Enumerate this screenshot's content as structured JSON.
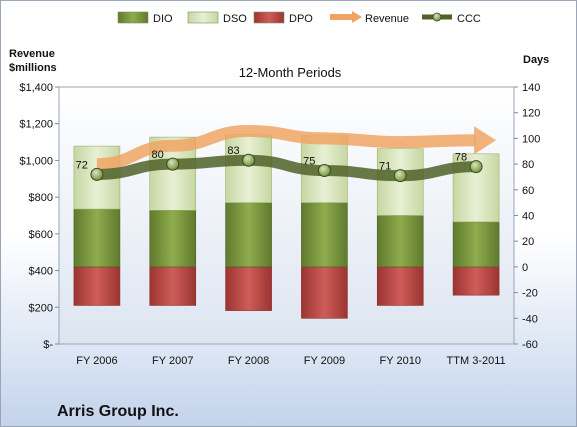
{
  "chart_data": {
    "type": "bar",
    "title": "12-Month Periods",
    "company": "Arris Group Inc.",
    "left_axis_title": [
      "Revenue",
      "$millions"
    ],
    "right_axis_title": "Days",
    "categories": [
      "FY 2006",
      "FY 2007",
      "FY 2008",
      "FY 2009",
      "FY 2010",
      "TTM 3-2011"
    ],
    "left_axis": {
      "min": 0,
      "max": 1400,
      "step": 200,
      "tick_labels": [
        "$-",
        "$200",
        "$400",
        "$600",
        "$800",
        "$1,000",
        "$1,200",
        "$1,400"
      ]
    },
    "right_axis": {
      "min": -60,
      "max": 140,
      "step": 20
    },
    "series": [
      {
        "name": "DIO",
        "kind": "stacked-bar-positive",
        "axis": "right",
        "values": [
          45,
          44,
          50,
          50,
          40,
          35
        ],
        "color": "#77933c"
      },
      {
        "name": "DSO",
        "kind": "stacked-bar-positive",
        "axis": "right",
        "values": [
          49,
          57,
          53,
          52,
          52,
          53
        ],
        "color": "#d7e4bd"
      },
      {
        "name": "DPO",
        "kind": "stacked-bar-negative",
        "axis": "right",
        "values": [
          -30,
          -30,
          -34,
          -40,
          -30,
          -22
        ],
        "color": "#c0504d"
      },
      {
        "name": "Revenue",
        "kind": "arrow-line",
        "axis": "left",
        "values": [
          980,
          1080,
          1160,
          1120,
          1100,
          1110
        ],
        "color": "#f0a464"
      },
      {
        "name": "CCC",
        "kind": "line-markers",
        "axis": "right",
        "values": [
          72,
          80,
          83,
          75,
          71,
          78
        ],
        "labels": [
          "72",
          "80",
          "83",
          "75",
          "71",
          "78"
        ],
        "color": "#4f6228"
      }
    ],
    "grid": false,
    "legend_position": "top"
  }
}
